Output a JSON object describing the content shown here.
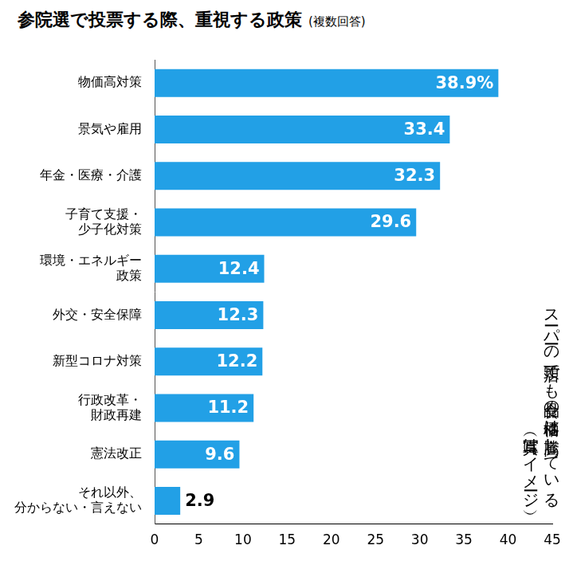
{
  "chart_data": {
    "type": "bar",
    "orientation": "horizontal",
    "title": "参院選で投票する際、重視する政策",
    "subtitle": "(複数回答)",
    "categories": [
      "物価高対策",
      "景気や雇用",
      "年金・医療・介護",
      "子育て支援・\n少子化対策",
      "環境・エネルギー\n政策",
      "外交・安全保障",
      "新型コロナ対策",
      "行政改革・\n財政再建",
      "憲法改正",
      "それ以外、\n分からない・言えない"
    ],
    "values": [
      38.9,
      33.4,
      32.3,
      29.6,
      12.4,
      12.3,
      12.2,
      11.2,
      9.6,
      2.9
    ],
    "value_labels": [
      "38.9%",
      "33.4",
      "32.3",
      "29.6",
      "12.4",
      "12.3",
      "12.2",
      "11.2",
      "9.6",
      "2.9"
    ],
    "data_labels": true,
    "color": "#22a0e6",
    "xlim": [
      0,
      45
    ],
    "xticks": [
      0,
      5,
      10,
      15,
      20,
      25,
      30,
      35,
      40,
      45
    ],
    "grid": false,
    "annotations": [
      "スーパーの店頭でも食品の価格は高騰している\n（写真はイメージ）"
    ]
  }
}
